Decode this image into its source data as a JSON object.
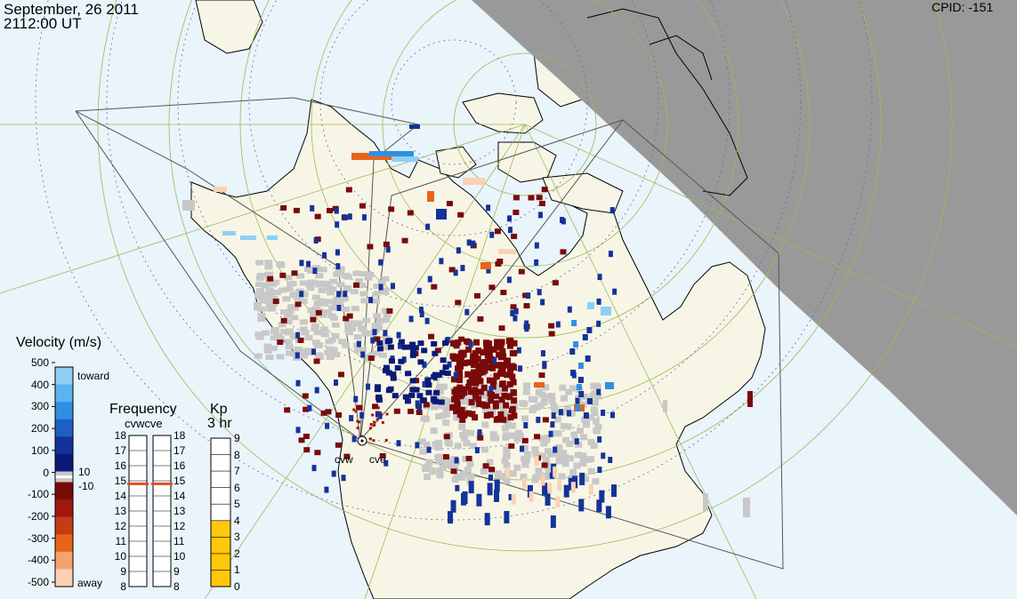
{
  "header": {
    "date": "September, 26 2011",
    "time": "2112:00 UT",
    "cpid": "CPID:  -151"
  },
  "radars": {
    "labels": [
      "cvw",
      "cve"
    ]
  },
  "velocity_legend": {
    "title": "Velocity (m/s)",
    "ticks": [
      "500",
      "400",
      "300",
      "200",
      "100",
      "0",
      "-100",
      "-200",
      "-300",
      "-400",
      "-500"
    ],
    "toward_label": "toward",
    "away_label": "away",
    "inner_ticks": [
      "10",
      "-10"
    ],
    "colors_toward": [
      "#8fcff5",
      "#5ab4ee",
      "#2f8fe0",
      "#1d5fc4",
      "#14329a",
      "#0a1a78"
    ],
    "colors_away": [
      "#7a0a0a",
      "#a01810",
      "#c83a12",
      "#e8641a",
      "#f5a36a",
      "#f9d2b4"
    ]
  },
  "frequency_legend": {
    "title": "Frequency",
    "subtitle": "cvwcve",
    "ticks": [
      "18",
      "17",
      "16",
      "15",
      "14",
      "13",
      "12",
      "11",
      "10",
      "9",
      "8"
    ],
    "cvw_value": 15,
    "cve_value": 15,
    "marker_color": "#e0502a"
  },
  "kp_legend": {
    "title": "Kp",
    "subtitle": "3 hr",
    "ticks": [
      "9",
      "8",
      "7",
      "6",
      "5",
      "4",
      "3",
      "2",
      "1",
      "0"
    ],
    "value": 4,
    "fill_color": "#ffc80a"
  },
  "map_colors": {
    "ocean": "#eaf4fb",
    "land": "#f7f6e6",
    "night": "#999999",
    "scatter_gray": "#c8c8c8"
  }
}
